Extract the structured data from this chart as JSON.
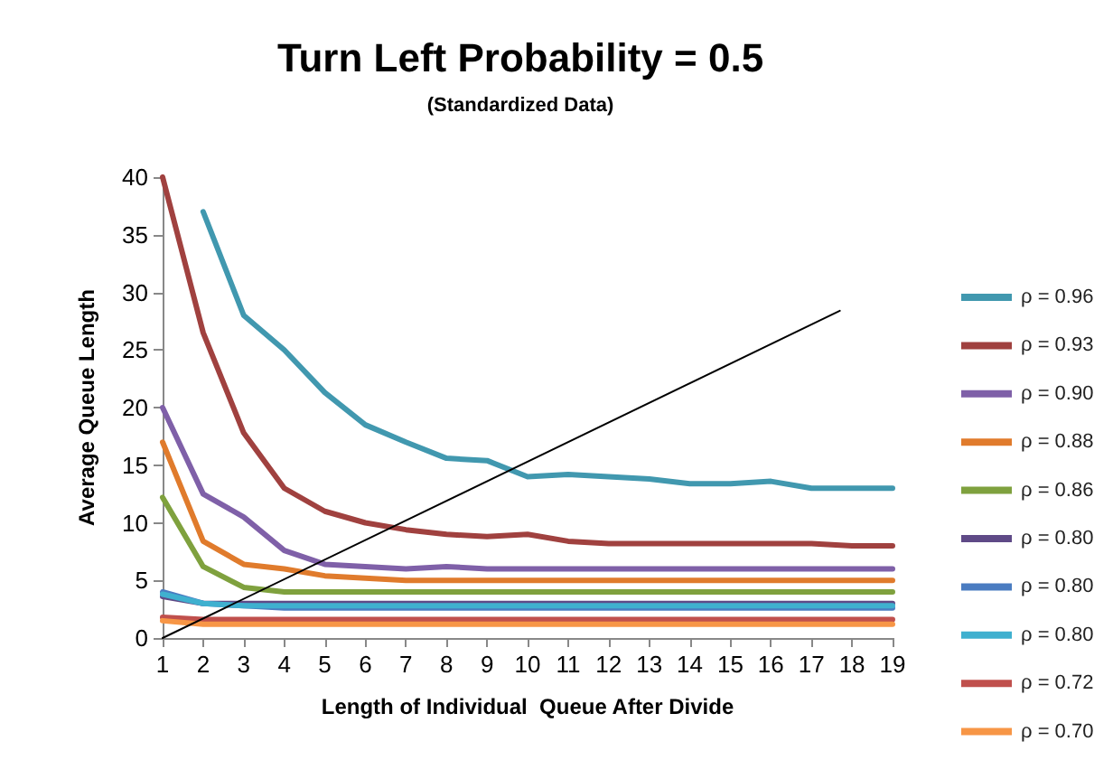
{
  "chart_data": {
    "type": "line",
    "title": "Turn Left Probability = 0.5",
    "subtitle": "(Standardized Data)",
    "xlabel": "Length of Individual  Queue After Divide",
    "ylabel": "Average Queue Length",
    "x": [
      1,
      2,
      3,
      4,
      5,
      6,
      7,
      8,
      9,
      10,
      11,
      12,
      13,
      14,
      15,
      16,
      17,
      18,
      19
    ],
    "xlim": [
      1,
      19
    ],
    "xticks": [
      1,
      2,
      3,
      4,
      5,
      6,
      7,
      8,
      9,
      10,
      11,
      12,
      13,
      14,
      15,
      16,
      17,
      18,
      19
    ],
    "ylim": [
      0,
      40
    ],
    "yticks": [
      0,
      5,
      10,
      15,
      20,
      25,
      30,
      35,
      40
    ],
    "grid": false,
    "legend": "right",
    "marker": "none",
    "line_style": "solid",
    "series": [
      {
        "name": "ρ = 0.96",
        "color": "#4198af",
        "values": [
          null,
          37,
          28,
          25,
          21.3,
          18.5,
          17,
          15.6,
          15.4,
          14,
          14.2,
          14,
          13.8,
          13.4,
          13.4,
          13.6,
          13,
          13,
          13
        ]
      },
      {
        "name": "ρ = 0.93",
        "color": "#a0413f",
        "values": [
          40,
          26.5,
          17.8,
          13,
          11,
          10,
          9.4,
          9,
          8.8,
          9,
          8.4,
          8.2,
          8.2,
          8.2,
          8.2,
          8.2,
          8.2,
          8,
          8
        ]
      },
      {
        "name": "ρ = 0.90",
        "color": "#7f60a8",
        "values": [
          20,
          12.5,
          10.5,
          7.6,
          6.4,
          6.2,
          6,
          6.2,
          6,
          6,
          6,
          6,
          6,
          6,
          6,
          6,
          6,
          6,
          6
        ]
      },
      {
        "name": "ρ = 0.88",
        "color": "#e07b2c",
        "values": [
          17,
          8.4,
          6.4,
          6,
          5.4,
          5.2,
          5,
          5,
          5,
          5,
          5,
          5,
          5,
          5,
          5,
          5,
          5,
          5,
          5
        ]
      },
      {
        "name": "ρ = 0.86",
        "color": "#7fa13e",
        "values": [
          12.2,
          6.2,
          4.4,
          4,
          4,
          4,
          4,
          4,
          4,
          4,
          4,
          4,
          4,
          4,
          4,
          4,
          4,
          4,
          4
        ]
      },
      {
        "name": "ρ = 0.80",
        "color": "#5f4a87",
        "values": [
          3.6,
          3,
          3,
          3,
          3,
          3,
          3,
          3,
          3,
          3,
          3,
          3,
          3,
          3,
          3,
          3,
          3,
          3,
          3
        ]
      },
      {
        "name": "ρ = 0.80",
        "color": "#4a7cc1",
        "values": [
          4,
          3,
          2.8,
          2.6,
          2.6,
          2.6,
          2.6,
          2.6,
          2.6,
          2.6,
          2.6,
          2.6,
          2.6,
          2.6,
          2.6,
          2.6,
          2.6,
          2.6,
          2.6
        ]
      },
      {
        "name": "ρ = 0.80",
        "color": "#3fb0cf",
        "values": [
          3.8,
          3,
          2.8,
          2.8,
          2.8,
          2.8,
          2.8,
          2.8,
          2.8,
          2.8,
          2.8,
          2.8,
          2.8,
          2.8,
          2.8,
          2.8,
          2.8,
          2.8,
          2.8
        ]
      },
      {
        "name": "ρ = 0.72",
        "color": "#c0504d",
        "values": [
          1.8,
          1.6,
          1.6,
          1.6,
          1.6,
          1.6,
          1.6,
          1.6,
          1.6,
          1.6,
          1.6,
          1.6,
          1.6,
          1.6,
          1.6,
          1.6,
          1.6,
          1.6,
          1.6
        ]
      },
      {
        "name": "ρ = 0.70",
        "color": "#f79646",
        "values": [
          1.5,
          1.2,
          1.2,
          1.2,
          1.2,
          1.2,
          1.2,
          1.2,
          1.2,
          1.2,
          1.2,
          1.2,
          1.2,
          1.2,
          1.2,
          1.2,
          1.2,
          1.2,
          1.2
        ]
      },
      {
        "color": "#000000",
        "x": [
          1,
          17.7
        ],
        "values": [
          0,
          28.4
        ]
      }
    ]
  }
}
